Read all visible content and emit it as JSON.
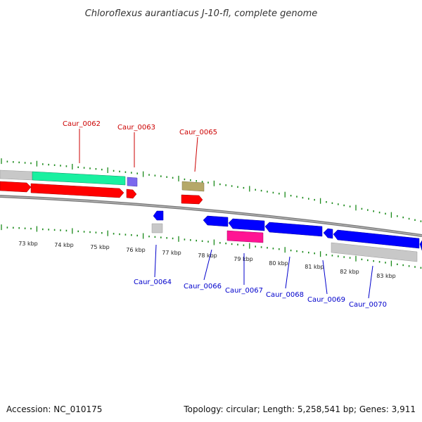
{
  "title": "Chloroflexus aurantiacus J-10-fl, complete genome",
  "footer": {
    "accession": "Accession: NC_010175",
    "summary": "Topology: circular; Length: 5,258,541 bp; Genes: 3,911"
  },
  "colors": {
    "top_labels": "#cc0000",
    "bottom_labels": "#0000cc",
    "tick_marks": "#1a8a1a",
    "backbone": "#888888"
  },
  "scale_labels": [
    "73 kbp",
    "74 kbp",
    "75 kbp",
    "76 kbp",
    "77 kbp",
    "78 kbp",
    "79 kbp",
    "80 kbp",
    "81 kbp",
    "82 kbp",
    "83 kbp"
  ],
  "genes_top": [
    {
      "label": "Caur_0062"
    },
    {
      "label": "Caur_0063"
    },
    {
      "label": "Caur_0065"
    }
  ],
  "genes_bottom": [
    {
      "label": "Caur_0064"
    },
    {
      "label": "Caur_0066"
    },
    {
      "label": "Caur_0067"
    },
    {
      "label": "Caur_0068"
    },
    {
      "label": "Caur_0069"
    },
    {
      "label": "Caur_0070"
    }
  ]
}
